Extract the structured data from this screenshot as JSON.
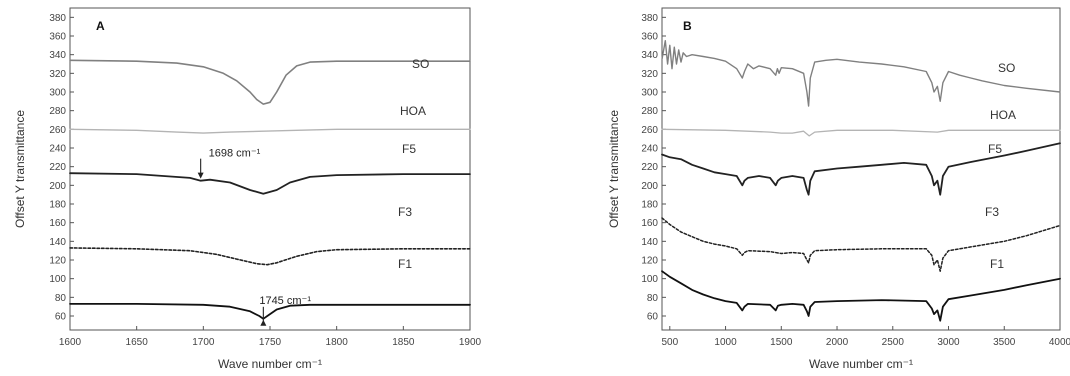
{
  "chart_data": [
    {
      "type": "line",
      "panel_label": "A",
      "xlabel": "Wave number cm⁻¹",
      "ylabel": "Offset Y transmittance",
      "xlim": [
        1600,
        1900
      ],
      "ylim": [
        45,
        390
      ],
      "xticks": [
        1600,
        1650,
        1700,
        1750,
        1800,
        1850,
        1900
      ],
      "yticks": [
        60,
        80,
        100,
        120,
        140,
        160,
        180,
        200,
        220,
        240,
        260,
        280,
        300,
        320,
        340,
        360,
        380
      ],
      "grid": false,
      "series": [
        {
          "name": "SO",
          "color": "#808080",
          "dashed": false,
          "width": 1.6,
          "x": [
            1600,
            1650,
            1680,
            1700,
            1715,
            1725,
            1735,
            1740,
            1745,
            1750,
            1755,
            1762,
            1770,
            1780,
            1800,
            1850,
            1900
          ],
          "y": [
            334,
            333,
            331,
            327,
            320,
            312,
            300,
            292,
            287,
            289,
            300,
            318,
            328,
            332,
            333,
            333,
            333
          ]
        },
        {
          "name": "HOA",
          "color": "#b4b4b4",
          "dashed": false,
          "width": 1.4,
          "x": [
            1600,
            1650,
            1680,
            1700,
            1720,
            1745,
            1770,
            1800,
            1850,
            1900
          ],
          "y": [
            260,
            259,
            257,
            256,
            257,
            258,
            259,
            260,
            260,
            260
          ]
        },
        {
          "name": "F5",
          "color": "#222222",
          "dashed": false,
          "width": 1.8,
          "x": [
            1600,
            1650,
            1690,
            1698,
            1705,
            1720,
            1735,
            1745,
            1755,
            1765,
            1780,
            1800,
            1850,
            1900
          ],
          "y": [
            213,
            212,
            208,
            205,
            206,
            203,
            195,
            191,
            195,
            203,
            209,
            211,
            212,
            212
          ]
        },
        {
          "name": "F3",
          "color": "#222222",
          "dashed": true,
          "width": 1.6,
          "x": [
            1600,
            1650,
            1690,
            1710,
            1725,
            1740,
            1748,
            1755,
            1770,
            1785,
            1800,
            1850,
            1900
          ],
          "y": [
            133,
            132,
            130,
            126,
            121,
            116,
            115,
            117,
            124,
            129,
            131,
            132,
            132
          ]
        },
        {
          "name": "F1",
          "color": "#111111",
          "dashed": false,
          "width": 1.8,
          "x": [
            1600,
            1650,
            1700,
            1720,
            1735,
            1742,
            1745,
            1748,
            1755,
            1765,
            1780,
            1800,
            1850,
            1900
          ],
          "y": [
            73,
            73,
            72,
            70,
            65,
            60,
            57,
            60,
            67,
            71,
            72,
            72,
            72,
            72
          ]
        }
      ],
      "annotations": [
        {
          "text": "1698 cm⁻¹",
          "x": 1698,
          "y": 205,
          "arrow": "down"
        },
        {
          "text": "1745 cm⁻¹",
          "x": 1745,
          "y": 57,
          "arrow": "up"
        }
      ]
    },
    {
      "type": "line",
      "panel_label": "B",
      "xlabel": "Wave number cm⁻¹",
      "ylabel": "Offset Y transmittance",
      "xlim": [
        430,
        4000
      ],
      "ylim": [
        45,
        390
      ],
      "xticks": [
        500,
        1000,
        1500,
        2000,
        2500,
        3000,
        3500,
        4000
      ],
      "yticks": [
        60,
        80,
        100,
        120,
        140,
        160,
        180,
        200,
        220,
        240,
        260,
        280,
        300,
        320,
        340,
        360,
        380
      ],
      "grid": false,
      "series": [
        {
          "name": "SO",
          "color": "#808080",
          "dashed": false,
          "width": 1.4,
          "x": [
            430,
            460,
            480,
            500,
            520,
            540,
            560,
            580,
            600,
            620,
            650,
            700,
            800,
            900,
            1000,
            1100,
            1150,
            1170,
            1200,
            1250,
            1300,
            1400,
            1450,
            1465,
            1480,
            1500,
            1600,
            1700,
            1730,
            1745,
            1760,
            1800,
            1900,
            2000,
            2200,
            2400,
            2600,
            2800,
            2850,
            2870,
            2900,
            2925,
            2950,
            3000,
            3100,
            3200,
            3300,
            3500,
            3700,
            4000
          ],
          "y": [
            335,
            355,
            330,
            350,
            325,
            348,
            330,
            345,
            332,
            342,
            338,
            340,
            338,
            336,
            333,
            325,
            315,
            322,
            330,
            325,
            328,
            325,
            318,
            325,
            320,
            326,
            325,
            320,
            300,
            285,
            315,
            332,
            334,
            335,
            332,
            330,
            327,
            322,
            310,
            300,
            306,
            290,
            310,
            322,
            318,
            315,
            312,
            307,
            304,
            300
          ]
        },
        {
          "name": "HOA",
          "color": "#b4b4b4",
          "dashed": false,
          "width": 1.3,
          "x": [
            430,
            1000,
            1400,
            1500,
            1600,
            1700,
            1750,
            1800,
            2000,
            2500,
            2900,
            3000,
            3500,
            4000
          ],
          "y": [
            260,
            259,
            257,
            256,
            256,
            258,
            253,
            257,
            259,
            259,
            257,
            259,
            259,
            259
          ]
        },
        {
          "name": "F5",
          "color": "#222222",
          "dashed": false,
          "width": 1.8,
          "x": [
            430,
            500,
            600,
            700,
            800,
            900,
            1000,
            1100,
            1150,
            1170,
            1200,
            1300,
            1400,
            1450,
            1470,
            1500,
            1600,
            1700,
            1730,
            1745,
            1760,
            1800,
            2000,
            2200,
            2400,
            2600,
            2800,
            2850,
            2870,
            2900,
            2925,
            2950,
            3000,
            3200,
            3500,
            3700,
            4000
          ],
          "y": [
            233,
            230,
            228,
            222,
            218,
            214,
            212,
            210,
            200,
            205,
            208,
            210,
            208,
            200,
            205,
            208,
            210,
            208,
            195,
            190,
            205,
            215,
            218,
            220,
            222,
            224,
            222,
            210,
            200,
            205,
            190,
            210,
            220,
            225,
            232,
            237,
            245
          ]
        },
        {
          "name": "F3",
          "color": "#222222",
          "dashed": true,
          "width": 1.5,
          "x": [
            430,
            500,
            600,
            700,
            800,
            900,
            1000,
            1100,
            1150,
            1170,
            1200,
            1400,
            1500,
            1600,
            1700,
            1730,
            1745,
            1760,
            1800,
            2000,
            2400,
            2800,
            2850,
            2870,
            2900,
            2925,
            2950,
            3000,
            3200,
            3500,
            3700,
            4000
          ],
          "y": [
            165,
            158,
            150,
            145,
            140,
            137,
            135,
            132,
            125,
            128,
            130,
            129,
            127,
            128,
            127,
            120,
            117,
            125,
            130,
            131,
            132,
            132,
            125,
            115,
            120,
            108,
            122,
            130,
            134,
            140,
            146,
            157
          ]
        },
        {
          "name": "F1",
          "color": "#111111",
          "dashed": false,
          "width": 1.8,
          "x": [
            430,
            500,
            600,
            700,
            800,
            900,
            1000,
            1100,
            1150,
            1170,
            1200,
            1400,
            1450,
            1470,
            1500,
            1600,
            1700,
            1730,
            1745,
            1760,
            1800,
            2000,
            2400,
            2800,
            2850,
            2870,
            2900,
            2925,
            2950,
            3000,
            3200,
            3500,
            3700,
            4000
          ],
          "y": [
            108,
            102,
            95,
            88,
            83,
            79,
            76,
            74,
            66,
            70,
            73,
            72,
            66,
            71,
            72,
            73,
            72,
            65,
            60,
            70,
            75,
            76,
            77,
            76,
            68,
            62,
            66,
            55,
            70,
            78,
            82,
            88,
            93,
            100
          ]
        }
      ]
    }
  ]
}
